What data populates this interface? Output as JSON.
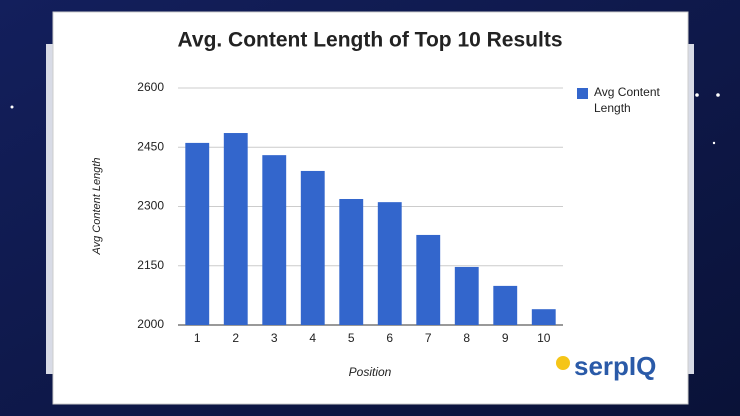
{
  "chart_data": {
    "type": "bar",
    "title": "Avg. Content Length of Top 10 Results",
    "x_label": "Position",
    "y_label": "Avg Content Length",
    "categories": [
      "1",
      "2",
      "3",
      "4",
      "5",
      "6",
      "7",
      "8",
      "9",
      "10"
    ],
    "series": [
      {
        "name": "Avg Content Length",
        "color": "#3366cc",
        "values": [
          2461,
          2486,
          2430,
          2390,
          2319,
          2311,
          2228,
          2147,
          2099,
          2040
        ]
      }
    ],
    "ylim": [
      2000,
      2600
    ],
    "yticks": [
      2000,
      2150,
      2300,
      2450,
      2600
    ],
    "grid": true,
    "legend": "right",
    "logo": "serpIQ"
  }
}
